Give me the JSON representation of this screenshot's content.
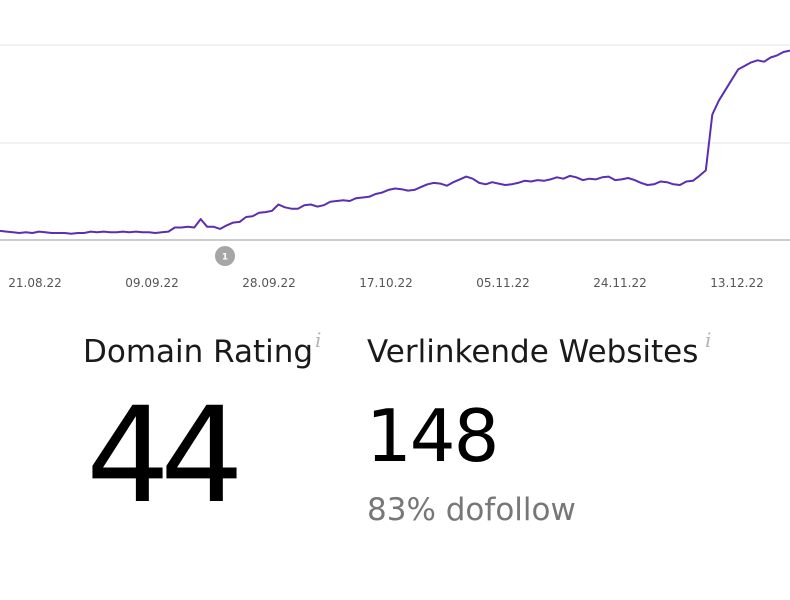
{
  "colors": {
    "line": "#5b2fb0",
    "grid": "#e6e6e6",
    "axis": "#999999",
    "marker": "#a6a6a6",
    "info_icon": "#b5b5b5",
    "sub_text": "#777777"
  },
  "chart_data": {
    "type": "line",
    "x_tick_labels": [
      "21.08.22",
      "09.09.22",
      "28.09.22",
      "17.10.22",
      "05.11.22",
      "24.11.22",
      "13.12.22"
    ],
    "grid": true,
    "annotation_marker": "1",
    "series": [
      {
        "values": [
          13,
          12,
          11,
          10,
          11,
          10,
          12,
          11,
          10,
          10,
          10,
          9,
          10,
          10,
          12,
          11,
          12,
          11,
          11,
          12,
          11,
          12,
          11,
          11,
          10,
          11,
          12,
          18,
          18,
          19,
          18,
          30,
          19,
          19,
          16,
          21,
          25,
          26,
          33,
          34,
          39,
          40,
          42,
          51,
          47,
          45,
          45,
          50,
          51,
          48,
          50,
          55,
          56,
          57,
          56,
          60,
          61,
          62,
          66,
          68,
          72,
          74,
          73,
          71,
          72,
          76,
          80,
          82,
          81,
          78,
          83,
          87,
          91,
          88,
          82,
          80,
          83,
          81,
          79,
          80,
          82,
          85,
          84,
          86,
          85,
          87,
          90,
          88,
          92,
          90,
          86,
          88,
          87,
          90,
          91,
          86,
          87,
          89,
          86,
          82,
          79,
          80,
          84,
          83,
          80,
          79,
          84,
          85,
          92,
          100,
          180,
          200,
          215,
          230,
          245,
          250,
          255,
          258,
          256,
          262,
          265,
          270,
          272
        ]
      }
    ]
  },
  "metrics": {
    "domain_rating": {
      "title": "Domain Rating",
      "value": "44"
    },
    "referring_websites": {
      "title": "Verlinkende Websites",
      "value": "148",
      "sub": "83% dofollow"
    },
    "info_icon_glyph": "i"
  }
}
